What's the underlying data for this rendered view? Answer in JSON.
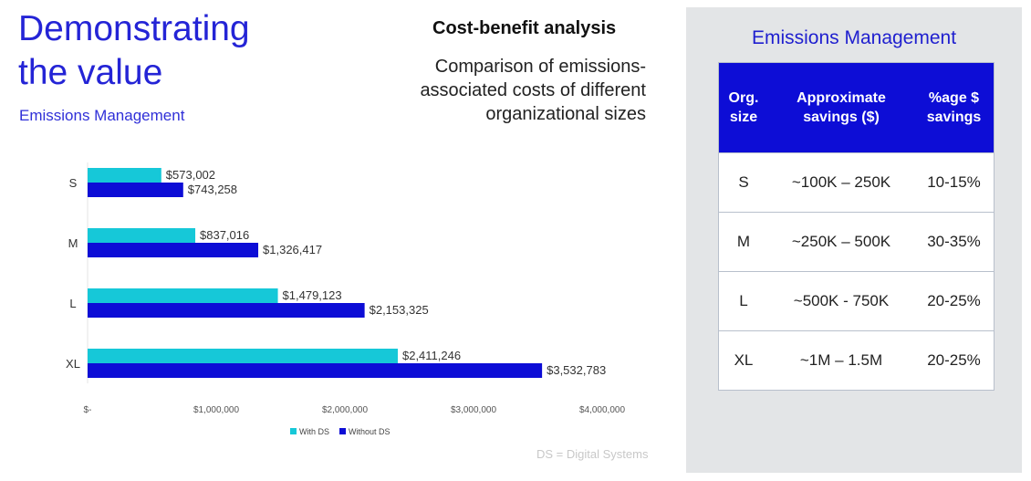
{
  "header": {
    "title_line1": "Demonstrating",
    "title_line2": "the value",
    "subtitle": "Emissions Management"
  },
  "analysis": {
    "title": "Cost-benefit analysis",
    "desc_line1": "Comparison of emissions-",
    "desc_line2": "associated costs of different",
    "desc_line3": "organizational sizes"
  },
  "footnote": "DS = Digital Systems",
  "colors": {
    "with_ds": "#16c8d8",
    "without_ds": "#0d0dd6",
    "accent": "#2424d6"
  },
  "chart_data": {
    "type": "bar",
    "orientation": "horizontal",
    "categories": [
      "S",
      "M",
      "L",
      "XL"
    ],
    "series": [
      {
        "name": "With DS",
        "values": [
          573002,
          837016,
          1479123,
          2411246
        ],
        "labels": [
          "$573,002",
          "$837,016",
          "$1,479,123",
          "$2,411,246"
        ]
      },
      {
        "name": "Without DS",
        "values": [
          743258,
          1326417,
          2153325,
          3532783
        ],
        "labels": [
          "$743,258",
          "$1,326,417",
          "$2,153,325",
          "$3,532,783"
        ]
      }
    ],
    "xlim": [
      0,
      4000000
    ],
    "xticks": [
      0,
      1000000,
      2000000,
      3000000,
      4000000
    ],
    "xtick_labels": [
      "$-",
      "$1,000,000",
      "$2,000,000",
      "$3,000,000",
      "$4,000,000"
    ],
    "legend_position": "bottom"
  },
  "panel": {
    "title": "Emissions Management",
    "headers": {
      "c1_line1": "Org.",
      "c1_line2": "size",
      "c2_line1": "Approximate",
      "c2_line2": "savings ($)",
      "c3_line1": "%age $",
      "c3_line2": "savings"
    },
    "rows": [
      {
        "size": "S",
        "savings": "~100K – 250K",
        "pct": "10-15%"
      },
      {
        "size": "M",
        "savings": "~250K – 500K",
        "pct": "30-35%"
      },
      {
        "size": "L",
        "savings": "~500K - 750K",
        "pct": "20-25%"
      },
      {
        "size": "XL",
        "savings": "~1M – 1.5M",
        "pct": "20-25%"
      }
    ]
  }
}
